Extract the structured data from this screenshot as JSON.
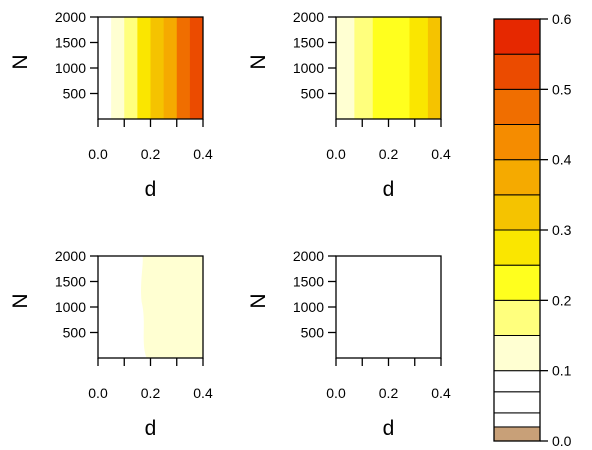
{
  "chart_data": [
    {
      "type": "heatmap",
      "panel": "top-left",
      "xlabel": "d",
      "ylabel": "N",
      "xlim": [
        0.0,
        0.4
      ],
      "ylim": [
        0,
        2000
      ],
      "xticks": [
        "0.0",
        "0.2",
        "0.4"
      ],
      "yticks": [
        "500",
        "1000",
        "1500",
        "2000"
      ],
      "filled_from_d": 0.0,
      "value_bands": [
        {
          "d_from": 0.0,
          "d_to": 0.05,
          "value": 0.08
        },
        {
          "d_from": 0.05,
          "d_to": 0.1,
          "value": 0.12
        },
        {
          "d_from": 0.1,
          "d_to": 0.15,
          "value": 0.18
        },
        {
          "d_from": 0.15,
          "d_to": 0.2,
          "value": 0.25
        },
        {
          "d_from": 0.2,
          "d_to": 0.25,
          "value": 0.32
        },
        {
          "d_from": 0.25,
          "d_to": 0.3,
          "value": 0.38
        },
        {
          "d_from": 0.3,
          "d_to": 0.35,
          "value": 0.45
        },
        {
          "d_from": 0.35,
          "d_to": 0.4,
          "value": 0.52
        }
      ]
    },
    {
      "type": "heatmap",
      "panel": "top-right",
      "xlabel": "d",
      "ylabel": "N",
      "xlim": [
        0.0,
        0.4
      ],
      "ylim": [
        0,
        2000
      ],
      "xticks": [
        "0.0",
        "0.2",
        "0.4"
      ],
      "yticks": [
        "500",
        "1000",
        "1500",
        "2000"
      ],
      "filled_from_d": 0.0,
      "value_bands": [
        {
          "d_from": 0.0,
          "d_to": 0.07,
          "value": 0.12
        },
        {
          "d_from": 0.07,
          "d_to": 0.14,
          "value": 0.16
        },
        {
          "d_from": 0.14,
          "d_to": 0.21,
          "value": 0.2
        },
        {
          "d_from": 0.21,
          "d_to": 0.28,
          "value": 0.22
        },
        {
          "d_from": 0.28,
          "d_to": 0.35,
          "value": 0.26
        },
        {
          "d_from": 0.35,
          "d_to": 0.4,
          "value": 0.3
        }
      ]
    },
    {
      "type": "heatmap",
      "panel": "bottom-left",
      "xlabel": "d",
      "ylabel": "N",
      "xlim": [
        0.0,
        0.4
      ],
      "ylim": [
        0,
        2000
      ],
      "xticks": [
        "0.0",
        "0.2",
        "0.4"
      ],
      "yticks": [
        "500",
        "1000",
        "1500",
        "2000"
      ],
      "filled_from_d": 0.17,
      "value_bands": [
        {
          "d_from": 0.17,
          "d_to": 0.4,
          "value": 0.12
        }
      ]
    },
    {
      "type": "heatmap",
      "panel": "bottom-right",
      "xlabel": "d",
      "ylabel": "N",
      "xlim": [
        0.0,
        0.4
      ],
      "ylim": [
        0,
        2000
      ],
      "xticks": [
        "0.0",
        "0.2",
        "0.4"
      ],
      "yticks": [
        "500",
        "1000",
        "1500",
        "2000"
      ],
      "filled_from_d": null,
      "value_bands": []
    }
  ],
  "colorbar": {
    "range": [
      0.0,
      0.6
    ],
    "ticks": [
      "0.0",
      "0.1",
      "0.2",
      "0.3",
      "0.4",
      "0.5",
      "0.6"
    ],
    "levels": [
      {
        "from": 0.0,
        "to": 0.02,
        "color": "#c8a078"
      },
      {
        "from": 0.02,
        "to": 0.04,
        "color": "#ffffff"
      },
      {
        "from": 0.04,
        "to": 0.07,
        "color": "#ffffff"
      },
      {
        "from": 0.07,
        "to": 0.1,
        "color": "#ffffff"
      },
      {
        "from": 0.1,
        "to": 0.15,
        "color": "#ffffd2"
      },
      {
        "from": 0.15,
        "to": 0.2,
        "color": "#ffff7d"
      },
      {
        "from": 0.2,
        "to": 0.25,
        "color": "#ffff1e"
      },
      {
        "from": 0.25,
        "to": 0.3,
        "color": "#fae600"
      },
      {
        "from": 0.3,
        "to": 0.35,
        "color": "#f5c300"
      },
      {
        "from": 0.35,
        "to": 0.4,
        "color": "#f5aa00"
      },
      {
        "from": 0.4,
        "to": 0.45,
        "color": "#f58c00"
      },
      {
        "from": 0.45,
        "to": 0.5,
        "color": "#f06e00"
      },
      {
        "from": 0.5,
        "to": 0.55,
        "color": "#eb4b00"
      },
      {
        "from": 0.55,
        "to": 0.6,
        "color": "#e62800"
      }
    ]
  }
}
